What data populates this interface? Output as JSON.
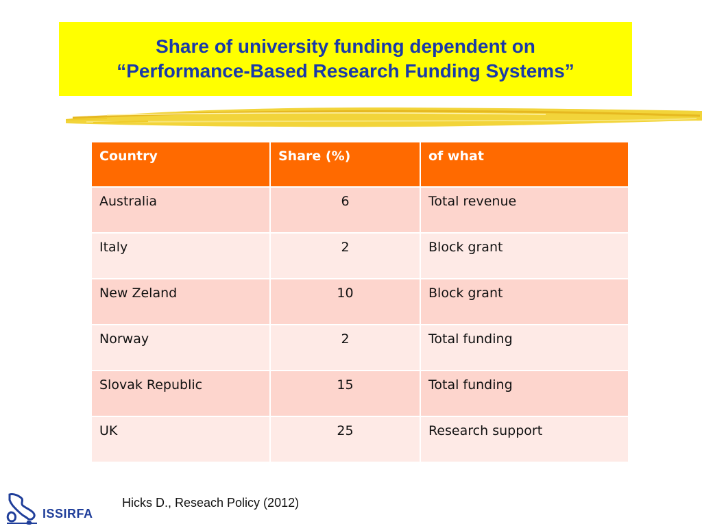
{
  "slide": {
    "title_line1": "Share of university funding dependent on",
    "title_line2": "“Performance-Based Research Funding Systems”",
    "colors": {
      "title_bg": "#ffff00",
      "title_text": "#1a3aa8",
      "header_bg": "#ff6a00",
      "row_odd": "#fdd5cd",
      "row_even": "#feeae6"
    }
  },
  "table": {
    "headers": [
      "Country",
      "Share (%)",
      "of what"
    ],
    "rows": [
      {
        "country": "Australia",
        "share": "6",
        "of_what": "Total revenue"
      },
      {
        "country": "Italy",
        "share": "2",
        "of_what": "Block grant"
      },
      {
        "country": "New Zeland",
        "share": "10",
        "of_what": "Block grant"
      },
      {
        "country": "Norway",
        "share": "2",
        "of_what": "Total funding"
      },
      {
        "country": "Slovak Republic",
        "share": "15",
        "of_what": "Total funding"
      },
      {
        "country": "UK",
        "share": "25",
        "of_what": "Research support"
      }
    ]
  },
  "footer": {
    "citation": "Hicks D., Reseach Policy (2012)",
    "logo_text": "ISSIRFA",
    "logo_icon": "italy-map-icon"
  }
}
